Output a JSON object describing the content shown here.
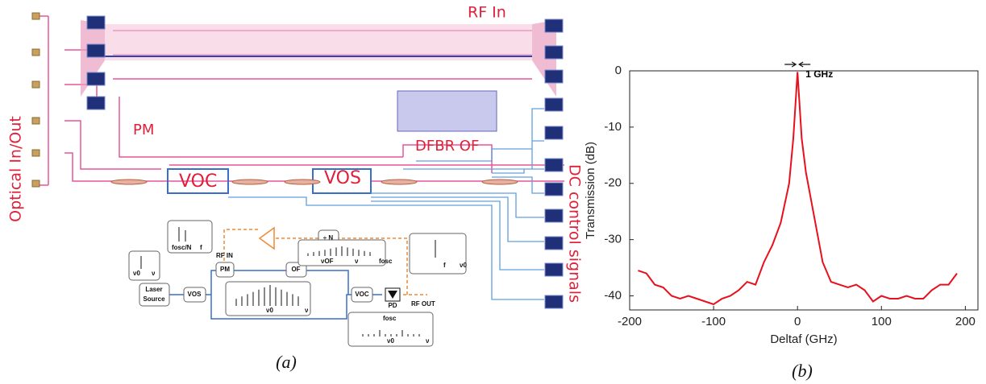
{
  "panel_a": {
    "layout_labels": {
      "rf_in": "RF In",
      "optical": "Optical In/Out",
      "pm": "PM",
      "dfbr": "DFBR OF",
      "voc": "VOC",
      "vos": "VOS",
      "dc": "DC control signals"
    },
    "schematic": {
      "laser": [
        "Laser",
        "Source"
      ],
      "vos": "VOS",
      "pm": "PM",
      "rf_in": "RF IN",
      "of": "OF",
      "voc": "VOC",
      "pd": "PD",
      "rf_out": "RF OUT",
      "divider": "÷ N",
      "spectrum_labels": [
        "fosc/N",
        "f",
        "ν0",
        "ν",
        "ν0",
        "νOF",
        "ν",
        "fosc",
        "f",
        "ν0",
        "ν",
        "fosc",
        "ν0",
        "ν"
      ]
    },
    "caption": "(a)"
  },
  "chart_data": {
    "type": "line",
    "xlabel": "Deltaf (GHz)",
    "ylabel": "Transmission (dB)",
    "annotation": "1 GHz",
    "caption": "(b)",
    "color": "#e8101c",
    "x": [
      -190,
      -180,
      -170,
      -160,
      -150,
      -140,
      -130,
      -120,
      -110,
      -100,
      -90,
      -80,
      -70,
      -60,
      -50,
      -40,
      -30,
      -20,
      -10,
      -5,
      -2,
      0,
      2,
      5,
      10,
      20,
      30,
      40,
      50,
      60,
      70,
      80,
      90,
      100,
      110,
      120,
      130,
      140,
      150,
      160,
      170,
      180,
      190
    ],
    "values": [
      -35.5,
      -36,
      -38,
      -38.5,
      -40,
      -40.5,
      -40,
      -40.5,
      -41,
      -41.5,
      -40.5,
      -40,
      -39,
      -37.5,
      -38,
      -34,
      -31,
      -27,
      -20,
      -12,
      -5,
      -0.2,
      -5,
      -12,
      -18,
      -26,
      -34,
      -37.5,
      -38,
      -38.5,
      -38,
      -39,
      -41,
      -40,
      -40.5,
      -40.5,
      -40,
      -40.5,
      -40.5,
      -39,
      -38,
      -38,
      -36
    ],
    "xlim": [
      -200,
      215
    ],
    "ylim": [
      -42.5,
      0
    ],
    "xticks": [
      -200,
      -100,
      0,
      100,
      200
    ],
    "yticks": [
      -40,
      -30,
      -20,
      -10,
      0
    ]
  }
}
